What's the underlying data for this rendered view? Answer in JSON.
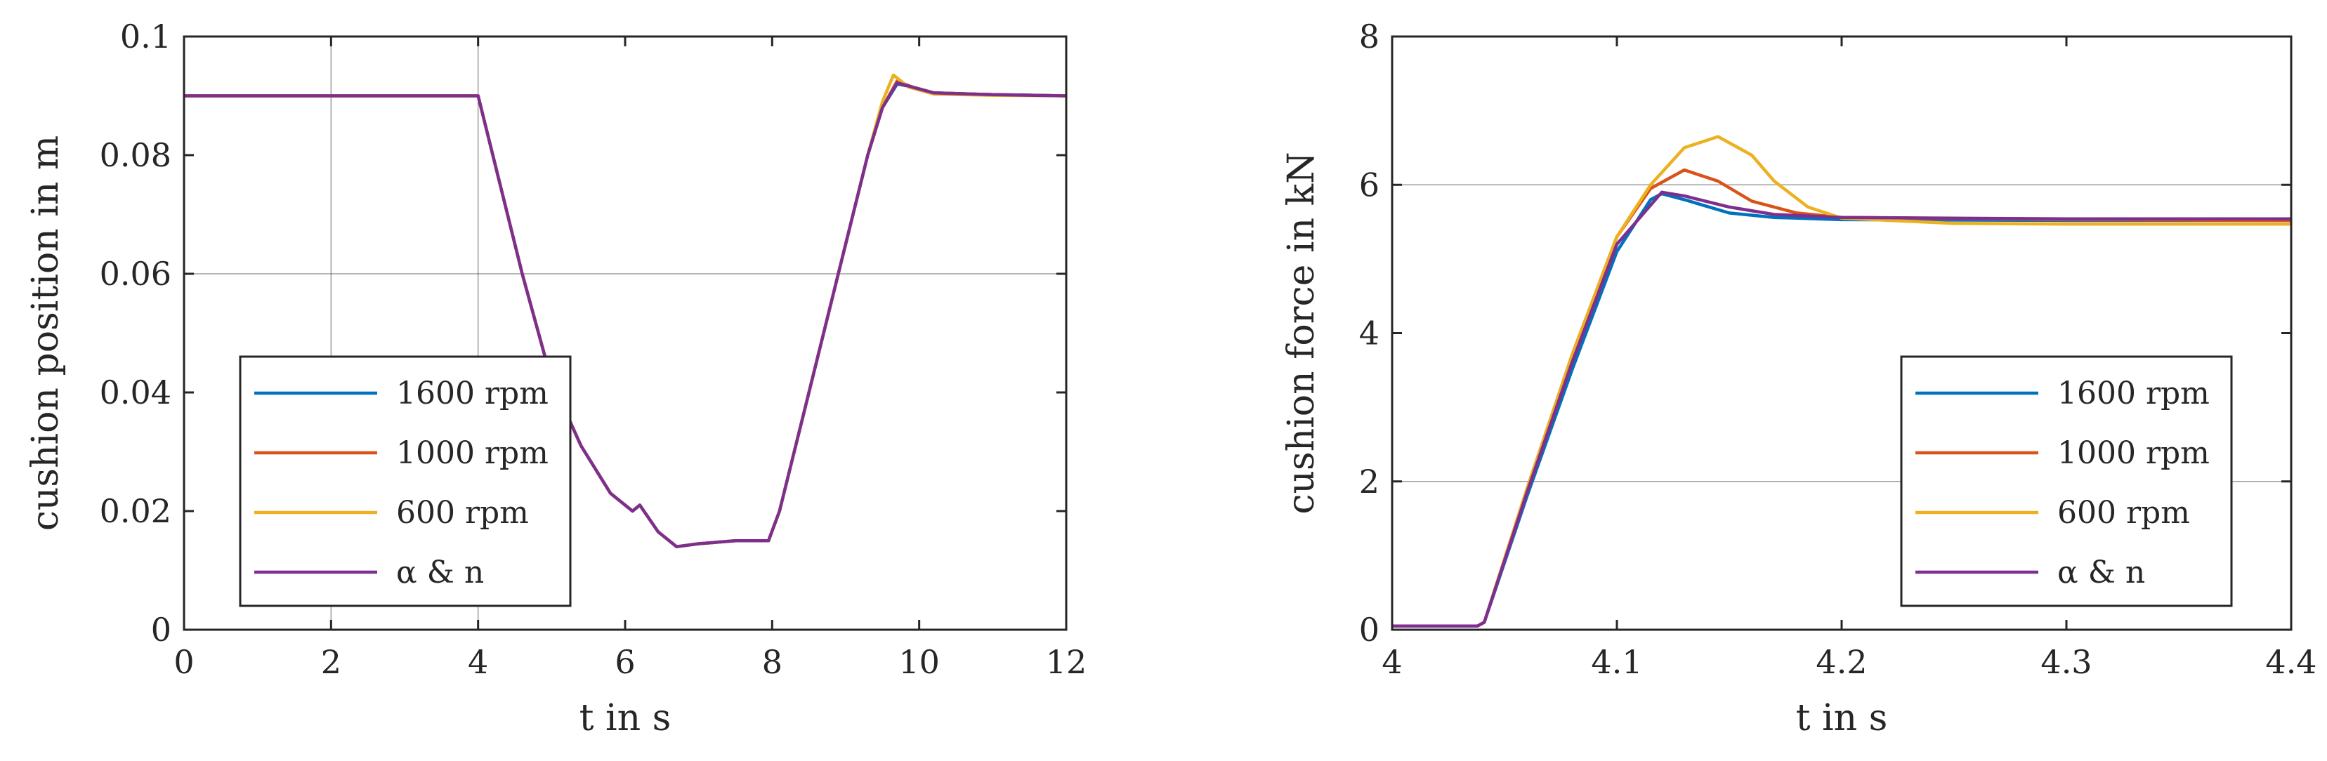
{
  "colors": {
    "blue": "#0072BD",
    "red": "#D95319",
    "yellow": "#EDB120",
    "purple": "#7E2F8E"
  },
  "chart_data": [
    {
      "type": "line",
      "xlabel": "t in s",
      "ylabel": "cushion position in m",
      "xlim": [
        0,
        12
      ],
      "ylim": [
        0,
        0.1
      ],
      "xticks": [
        0,
        2,
        4,
        6,
        8,
        10,
        12
      ],
      "xtick_labels": [
        "0",
        "2",
        "4",
        "6",
        "8",
        "10",
        "12"
      ],
      "yticks": [
        0,
        0.02,
        0.04,
        0.06,
        0.08,
        0.1
      ],
      "ytick_labels": [
        "0",
        "0.02",
        "0.04",
        "0.06",
        "0.08",
        "0.1"
      ],
      "grid_x": [
        2,
        4
      ],
      "grid_y": [
        0.06
      ],
      "legend_position": "bottom-left",
      "series": [
        {
          "name": "1600 rpm",
          "color": "#0072BD",
          "points": [
            [
              0,
              0.09
            ],
            [
              1,
              0.09
            ],
            [
              4,
              0.09
            ],
            [
              4.6,
              0.06
            ],
            [
              5.0,
              0.042
            ],
            [
              5.4,
              0.031
            ],
            [
              5.8,
              0.023
            ],
            [
              6.1,
              0.02
            ],
            [
              6.2,
              0.021
            ],
            [
              6.45,
              0.0165
            ],
            [
              6.7,
              0.014
            ],
            [
              7.0,
              0.0145
            ],
            [
              7.5,
              0.015
            ],
            [
              7.95,
              0.015
            ],
            [
              8.1,
              0.02
            ],
            [
              8.5,
              0.04
            ],
            [
              8.9,
              0.06
            ],
            [
              9.3,
              0.08
            ],
            [
              9.5,
              0.088
            ],
            [
              9.7,
              0.092
            ],
            [
              9.9,
              0.0915
            ],
            [
              10.2,
              0.0905
            ],
            [
              11,
              0.0902
            ],
            [
              12,
              0.09
            ]
          ]
        },
        {
          "name": "1000 rpm",
          "color": "#D95319",
          "points": [
            [
              0,
              0.09
            ],
            [
              1,
              0.09
            ],
            [
              4,
              0.09
            ],
            [
              4.6,
              0.06
            ],
            [
              5.0,
              0.042
            ],
            [
              5.4,
              0.031
            ],
            [
              5.8,
              0.023
            ],
            [
              6.1,
              0.02
            ],
            [
              6.2,
              0.021
            ],
            [
              6.45,
              0.0165
            ],
            [
              6.7,
              0.014
            ],
            [
              7.0,
              0.0145
            ],
            [
              7.5,
              0.015
            ],
            [
              7.95,
              0.015
            ],
            [
              8.1,
              0.02
            ],
            [
              8.5,
              0.04
            ],
            [
              8.9,
              0.06
            ],
            [
              9.3,
              0.08
            ],
            [
              9.5,
              0.088
            ],
            [
              9.7,
              0.0925
            ],
            [
              9.9,
              0.0915
            ],
            [
              10.2,
              0.0905
            ],
            [
              11,
              0.0902
            ],
            [
              12,
              0.09
            ]
          ]
        },
        {
          "name": "600 rpm",
          "color": "#EDB120",
          "points": [
            [
              0,
              0.09
            ],
            [
              1,
              0.09
            ],
            [
              4,
              0.09
            ],
            [
              4.6,
              0.06
            ],
            [
              5.0,
              0.042
            ],
            [
              5.4,
              0.031
            ],
            [
              5.8,
              0.023
            ],
            [
              6.1,
              0.02
            ],
            [
              6.2,
              0.021
            ],
            [
              6.45,
              0.0165
            ],
            [
              6.7,
              0.014
            ],
            [
              7.0,
              0.0145
            ],
            [
              7.5,
              0.015
            ],
            [
              7.95,
              0.015
            ],
            [
              8.1,
              0.02
            ],
            [
              8.5,
              0.04
            ],
            [
              8.9,
              0.06
            ],
            [
              9.3,
              0.08
            ],
            [
              9.5,
              0.089
            ],
            [
              9.65,
              0.0935
            ],
            [
              9.85,
              0.0915
            ],
            [
              10.2,
              0.0903
            ],
            [
              11,
              0.0901
            ],
            [
              12,
              0.09
            ]
          ]
        },
        {
          "name": "α & n",
          "color": "#7E2F8E",
          "points": [
            [
              0,
              0.09
            ],
            [
              1,
              0.09
            ],
            [
              4,
              0.09
            ],
            [
              4.6,
              0.06
            ],
            [
              5.0,
              0.042
            ],
            [
              5.4,
              0.031
            ],
            [
              5.8,
              0.023
            ],
            [
              6.1,
              0.02
            ],
            [
              6.2,
              0.021
            ],
            [
              6.45,
              0.0165
            ],
            [
              6.7,
              0.014
            ],
            [
              7.0,
              0.0145
            ],
            [
              7.5,
              0.015
            ],
            [
              7.95,
              0.015
            ],
            [
              8.1,
              0.02
            ],
            [
              8.5,
              0.04
            ],
            [
              8.9,
              0.06
            ],
            [
              9.3,
              0.08
            ],
            [
              9.5,
              0.088
            ],
            [
              9.7,
              0.0922
            ],
            [
              9.9,
              0.0915
            ],
            [
              10.2,
              0.0905
            ],
            [
              11,
              0.0902
            ],
            [
              12,
              0.09
            ]
          ]
        }
      ]
    },
    {
      "type": "line",
      "xlabel": "t in s",
      "ylabel": "cushion force in kN",
      "xlim": [
        4,
        4.4
      ],
      "ylim": [
        0,
        8
      ],
      "xticks": [
        4,
        4.1,
        4.2,
        4.3,
        4.4
      ],
      "xtick_labels": [
        "4",
        "4.1",
        "4.2",
        "4.3",
        "4.4"
      ],
      "yticks": [
        0,
        2,
        4,
        6,
        8
      ],
      "ytick_labels": [
        "0",
        "2",
        "4",
        "6",
        "8"
      ],
      "grid_y": [
        6,
        2
      ],
      "legend_position": "bottom-right",
      "series": [
        {
          "name": "1600 rpm",
          "color": "#0072BD",
          "points": [
            [
              4,
              0.05
            ],
            [
              4.038,
              0.05
            ],
            [
              4.041,
              0.1
            ],
            [
              4.06,
              1.8
            ],
            [
              4.08,
              3.5
            ],
            [
              4.1,
              5.1
            ],
            [
              4.115,
              5.8
            ],
            [
              4.12,
              5.88
            ],
            [
              4.13,
              5.8
            ],
            [
              4.15,
              5.62
            ],
            [
              4.17,
              5.56
            ],
            [
              4.2,
              5.53
            ],
            [
              4.3,
              5.52
            ],
            [
              4.4,
              5.52
            ]
          ]
        },
        {
          "name": "1000 rpm",
          "color": "#D95319",
          "points": [
            [
              4,
              0.05
            ],
            [
              4.038,
              0.05
            ],
            [
              4.041,
              0.1
            ],
            [
              4.06,
              1.9
            ],
            [
              4.08,
              3.7
            ],
            [
              4.1,
              5.3
            ],
            [
              4.115,
              5.95
            ],
            [
              4.13,
              6.2
            ],
            [
              4.145,
              6.05
            ],
            [
              4.16,
              5.78
            ],
            [
              4.18,
              5.62
            ],
            [
              4.2,
              5.56
            ],
            [
              4.3,
              5.53
            ],
            [
              4.4,
              5.52
            ]
          ]
        },
        {
          "name": "600 rpm",
          "color": "#EDB120",
          "points": [
            [
              4,
              0.05
            ],
            [
              4.038,
              0.05
            ],
            [
              4.041,
              0.1
            ],
            [
              4.06,
              1.9
            ],
            [
              4.08,
              3.7
            ],
            [
              4.1,
              5.3
            ],
            [
              4.115,
              6.0
            ],
            [
              4.13,
              6.5
            ],
            [
              4.145,
              6.65
            ],
            [
              4.16,
              6.4
            ],
            [
              4.17,
              6.05
            ],
            [
              4.185,
              5.7
            ],
            [
              4.2,
              5.55
            ],
            [
              4.25,
              5.48
            ],
            [
              4.3,
              5.47
            ],
            [
              4.4,
              5.47
            ]
          ]
        },
        {
          "name": "α & n",
          "color": "#7E2F8E",
          "points": [
            [
              4,
              0.05
            ],
            [
              4.038,
              0.05
            ],
            [
              4.041,
              0.1
            ],
            [
              4.06,
              1.85
            ],
            [
              4.08,
              3.6
            ],
            [
              4.1,
              5.2
            ],
            [
              4.12,
              5.9
            ],
            [
              4.13,
              5.85
            ],
            [
              4.15,
              5.7
            ],
            [
              4.17,
              5.6
            ],
            [
              4.2,
              5.56
            ],
            [
              4.3,
              5.54
            ],
            [
              4.4,
              5.54
            ]
          ]
        }
      ]
    }
  ]
}
